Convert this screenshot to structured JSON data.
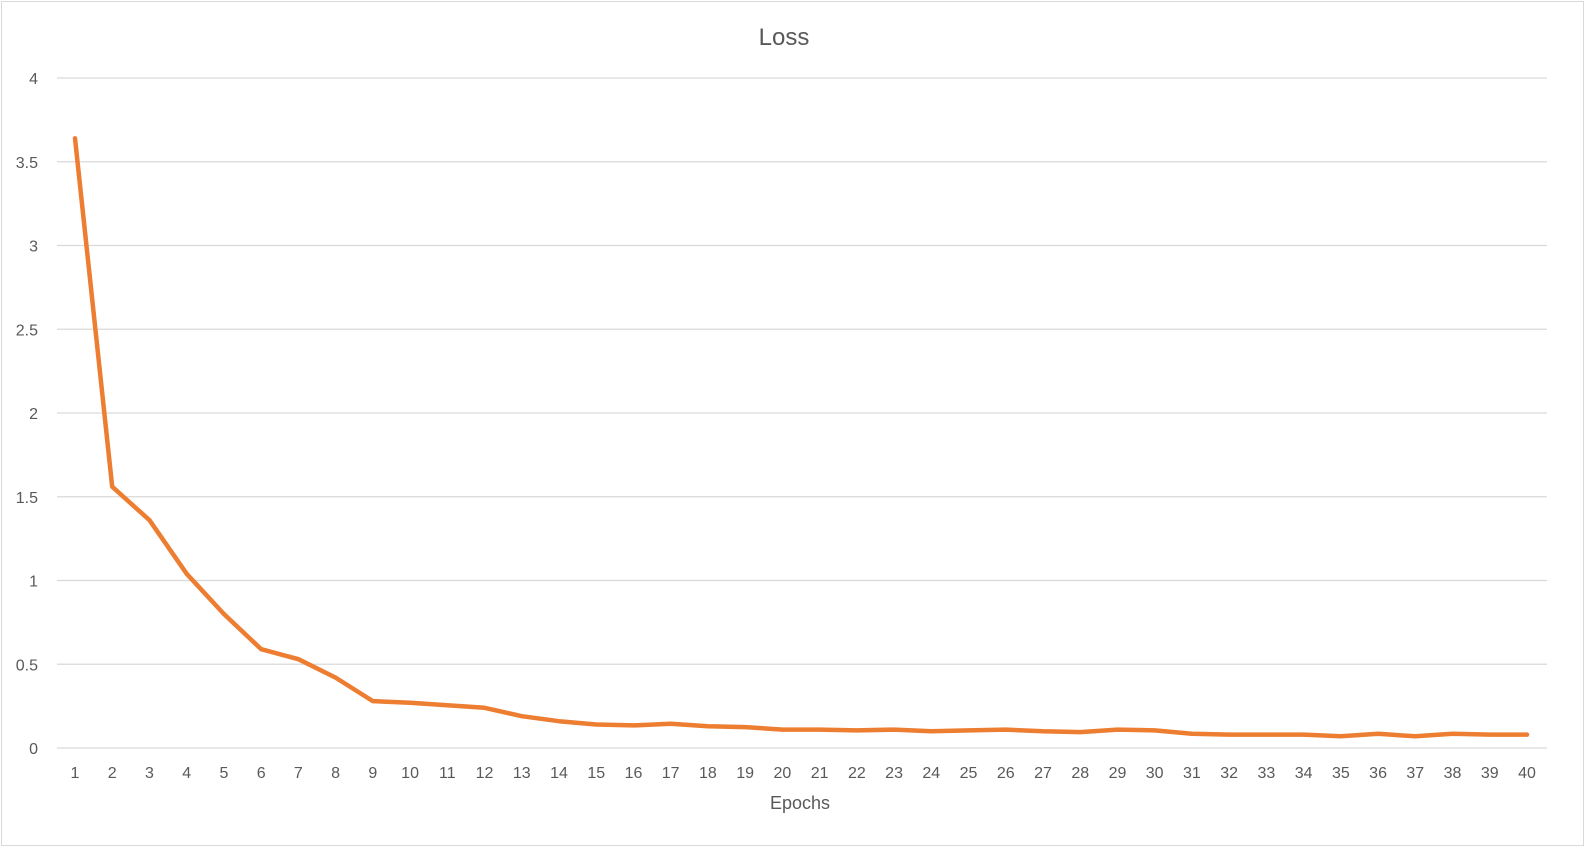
{
  "chart_data": {
    "type": "line",
    "title": "Loss",
    "xlabel": "Epochs",
    "ylabel": "",
    "ylim": [
      0,
      4
    ],
    "yticks": [
      0,
      0.5,
      1,
      1.5,
      2,
      2.5,
      3,
      3.5,
      4
    ],
    "ytick_labels": [
      "0",
      "0.5",
      "1",
      "1.5",
      "2",
      "2.5",
      "3",
      "3.5",
      "4"
    ],
    "grid": true,
    "legend": "none",
    "categories": [
      "1",
      "2",
      "3",
      "4",
      "5",
      "6",
      "7",
      "8",
      "9",
      "10",
      "11",
      "12",
      "13",
      "14",
      "15",
      "16",
      "17",
      "18",
      "19",
      "20",
      "21",
      "22",
      "23",
      "24",
      "25",
      "26",
      "27",
      "28",
      "29",
      "30",
      "31",
      "32",
      "33",
      "34",
      "35",
      "36",
      "37",
      "38",
      "39",
      "40"
    ],
    "series": [
      {
        "color": "#ED7D31",
        "values": [
          3.64,
          1.56,
          1.36,
          1.04,
          0.8,
          0.59,
          0.53,
          0.42,
          0.28,
          0.27,
          0.255,
          0.24,
          0.19,
          0.16,
          0.14,
          0.135,
          0.145,
          0.13,
          0.125,
          0.11,
          0.11,
          0.105,
          0.11,
          0.1,
          0.105,
          0.11,
          0.1,
          0.095,
          0.11,
          0.105,
          0.085,
          0.08,
          0.08,
          0.08,
          0.07,
          0.085,
          0.07,
          0.085,
          0.08,
          0.08
        ]
      }
    ]
  }
}
